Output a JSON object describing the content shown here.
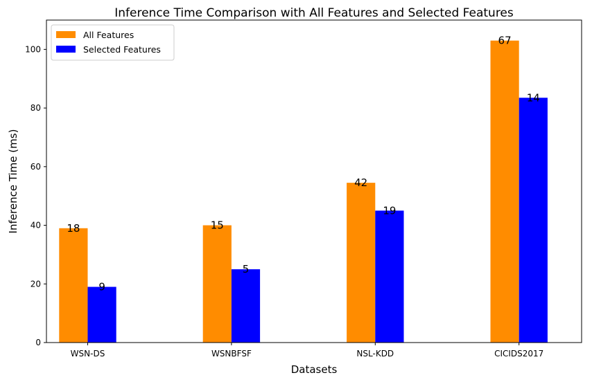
{
  "chart_data": {
    "type": "bar",
    "title": "Inference Time Comparison with All Features and Selected Features",
    "xlabel": "Datasets",
    "ylabel": "Inference Time (ms)",
    "categories": [
      "WSN-DS",
      "WSNBFSF",
      "NSL-KDD",
      "CICIDS2017"
    ],
    "ylim": [
      0,
      110
    ],
    "yticks": [
      0,
      20,
      40,
      60,
      80,
      100
    ],
    "grid": false,
    "legend_position": "top-left",
    "series": [
      {
        "name": "All Features",
        "color": "#ff8c00",
        "values": [
          39,
          40,
          54.5,
          103
        ],
        "labels": [
          "18",
          "15",
          "42",
          "67"
        ]
      },
      {
        "name": "Selected Features",
        "color": "#0000ff",
        "values": [
          19,
          25,
          45,
          83.5
        ],
        "labels": [
          "9",
          "5",
          "19",
          "14"
        ]
      }
    ]
  }
}
